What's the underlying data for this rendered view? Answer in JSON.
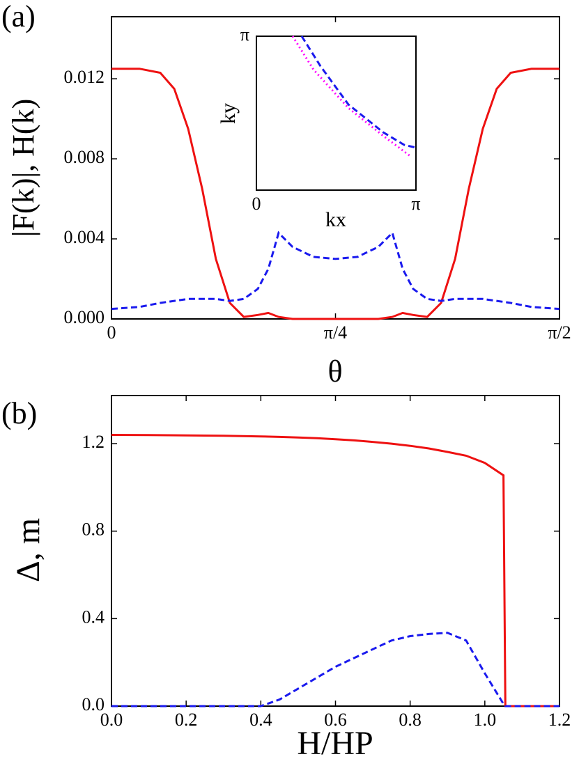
{
  "chart_data": [
    {
      "type": "line",
      "panel_label": "(a)",
      "xlabel": "θ",
      "ylabel": "|F(k)|, H(k)",
      "xlim": [
        0,
        1.5708
      ],
      "ylim": [
        0,
        0.0151
      ],
      "xticks": [
        0,
        {
          "value": 0.7854,
          "label": "π/4"
        },
        {
          "value": 1.5708,
          "label": "π/2"
        }
      ],
      "yticks": [
        {
          "value": 0,
          "label": "0.000"
        },
        0.004,
        0.008,
        0.012
      ],
      "x": [
        0,
        0.098,
        0.171,
        0.22,
        0.269,
        0.318,
        0.366,
        0.415,
        0.464,
        0.513,
        0.55,
        0.586,
        0.635,
        0.708,
        0.7854,
        0.8626,
        0.9356,
        0.9848,
        1.0208,
        1.0578,
        1.1068,
        1.1558,
        1.2048,
        1.2528,
        1.3018,
        1.3508,
        1.3998,
        1.4728,
        1.5708
      ],
      "series": [
        {
          "color": "#ee1111",
          "linestyle": "solid",
          "values": [
            0.0125,
            0.0125,
            0.0123,
            0.0115,
            0.0095,
            0.0065,
            0.003,
            0.0008,
            0.0001,
            0.0002,
            0.0003,
            0.0001,
            0,
            0,
            0,
            0,
            0,
            0.0001,
            0.0003,
            0.0002,
            0.0001,
            0.0008,
            0.003,
            0.0065,
            0.0095,
            0.0115,
            0.0123,
            0.0125,
            0.0125
          ]
        },
        {
          "color": "#1a1aee",
          "linestyle": "dashed",
          "values": [
            0.0005,
            0.0006,
            0.0008,
            0.0009,
            0.001,
            0.001,
            0.001,
            0.0009,
            0.001,
            0.0015,
            0.0025,
            0.0043,
            0.0036,
            0.0031,
            0.003,
            0.0031,
            0.0036,
            0.0043,
            0.0025,
            0.0015,
            0.001,
            0.0009,
            0.001,
            0.001,
            0.001,
            0.0009,
            0.0008,
            0.0006,
            0.0005
          ]
        }
      ]
    },
    {
      "type": "line",
      "xlabel": "kx",
      "ylabel": "ky",
      "xlim": [
        0,
        3.1416
      ],
      "ylim": [
        0,
        3.1416
      ],
      "xticks": [
        0,
        {
          "value": 3.1416,
          "label": "π"
        }
      ],
      "yticks": [
        {
          "value": 3.1416,
          "label": "π"
        }
      ],
      "series": [
        {
          "color": "#ff00ff",
          "linestyle": "dotted",
          "x": [
            0.713,
            1.125,
            1.811,
            2.497,
            3.046
          ],
          "values": [
            3.1416,
            2.459,
            1.677,
            1.109,
            0.682
          ]
        },
        {
          "color": "#1a1aee",
          "linestyle": "dashed",
          "x": [
            0.892,
            1.262,
            1.811,
            2.497,
            2.908,
            3.1416
          ],
          "values": [
            3.1416,
            2.53,
            1.749,
            1.18,
            0.924,
            0.867
          ]
        }
      ]
    },
    {
      "type": "line",
      "panel_label": "(b)",
      "xlabel": "H/HP",
      "ylabel": "Δ, m",
      "xlim": [
        0,
        1.2
      ],
      "ylim": [
        0,
        1.42
      ],
      "xticks": [
        {
          "value": 0,
          "label": "0.0"
        },
        0.2,
        0.4,
        0.6,
        0.8,
        {
          "value": 1,
          "label": "1.0"
        },
        1.2
      ],
      "yticks": [
        {
          "value": 0,
          "label": "0.0"
        },
        0.4,
        0.8,
        1.2
      ],
      "x": [
        0,
        0.1,
        0.2,
        0.3,
        0.4,
        0.45,
        0.5,
        0.55,
        0.6,
        0.65,
        0.7,
        0.75,
        0.8,
        0.85,
        0.9,
        0.95,
        1.0,
        1.05,
        1.055,
        1.1,
        1.2
      ],
      "series": [
        {
          "color": "#ee1111",
          "linestyle": "solid",
          "values": [
            1.24,
            1.239,
            1.238,
            1.236,
            1.233,
            1.231,
            1.228,
            1.225,
            1.22,
            1.215,
            1.208,
            1.2,
            1.19,
            1.178,
            1.162,
            1.145,
            1.112,
            1.055,
            0,
            0,
            0
          ]
        },
        {
          "color": "#1a1aee",
          "linestyle": "dashed",
          "values": [
            0,
            0,
            0,
            0,
            0,
            0.03,
            0.08,
            0.13,
            0.18,
            0.22,
            0.26,
            0.3,
            0.32,
            0.33,
            0.335,
            0.3,
            0.15,
            0.01,
            0,
            0,
            0
          ]
        }
      ]
    }
  ]
}
